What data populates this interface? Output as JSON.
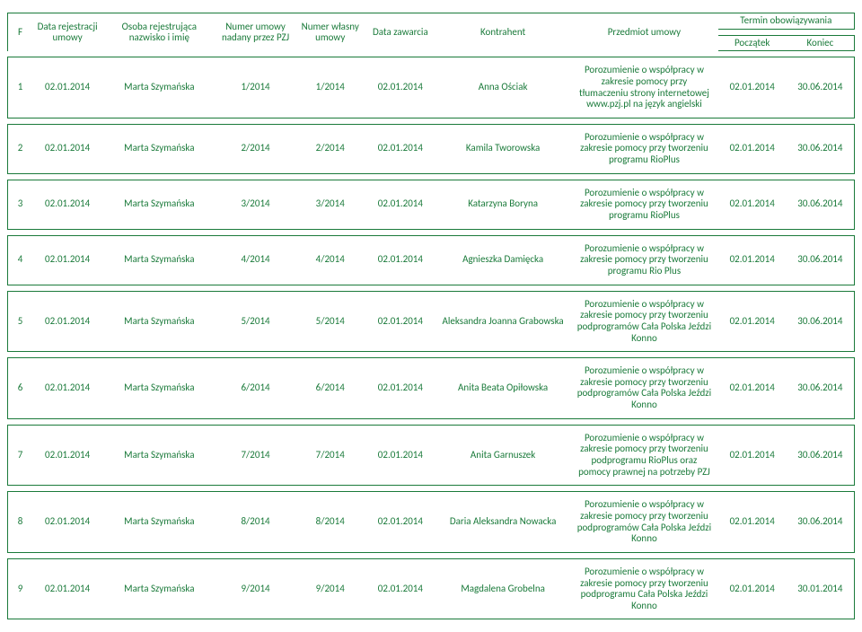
{
  "columns": {
    "f": "F",
    "reg_date": "Data rejestracji umowy",
    "person": "Osoba rejestrująca   nazwisko i imię",
    "pzj_no": "Numer umowy nadany przez PZJ",
    "own_no": "Numer własny umowy",
    "concl_date": "Data zawarcia",
    "counterparty": "Kontrahent",
    "subject": "Przedmiot umowy",
    "term": "Termin obowiązywania",
    "start": "Początek",
    "end": "Koniec"
  },
  "rows": [
    {
      "f": "1",
      "reg": "02.01.2014",
      "person": "Marta Szymańska",
      "pzj": "1/2014",
      "own": "1/2014",
      "dc": "02.01.2014",
      "kon": "Anna Ościak",
      "sub": "Porozumienie o współpracy w zakresie pomocy przy tłumaczeniu strony internetowej www.pzj.pl na język angielski",
      "d1": "02.01.2014",
      "d2": "30.06.2014"
    },
    {
      "f": "2",
      "reg": "02.01.2014",
      "person": "Marta Szymańska",
      "pzj": "2/2014",
      "own": "2/2014",
      "dc": "02.01.2014",
      "kon": "Kamila Tworowska",
      "sub": "Porozumienie o współpracy w zakresie pomocy przy tworzeniu programu RioPlus",
      "d1": "02.01.2014",
      "d2": "30.06.2014"
    },
    {
      "f": "3",
      "reg": "02.01.2014",
      "person": "Marta Szymańska",
      "pzj": "3/2014",
      "own": "3/2014",
      "dc": "02.01.2014",
      "kon": "Katarzyna Boryna",
      "sub": "Porozumienie o współpracy w zakresie pomocy przy tworzeniu programu RioPlus",
      "d1": "02.01.2014",
      "d2": "30.06.2014"
    },
    {
      "f": "4",
      "reg": "02.01.2014",
      "person": "Marta Szymańska",
      "pzj": "4/2014",
      "own": "4/2014",
      "dc": "02.01.2014",
      "kon": "Agnieszka Damięcka",
      "sub": "Porozumienie o współpracy w zakresie pomocy przy tworzeniu programu Rio Plus",
      "d1": "02.01.2014",
      "d2": "30.06.2014"
    },
    {
      "f": "5",
      "reg": "02.01.2014",
      "person": "Marta Szymańska",
      "pzj": "5/2014",
      "own": "5/2014",
      "dc": "02.01.2014",
      "kon": "Aleksandra Joanna Grabowska",
      "sub": "Porozumienie o współpracy w zakresie pomocy przy tworzeniu podprogramów Cała Polska Jeździ Konno",
      "d1": "02.01.2014",
      "d2": "30.06.2014"
    },
    {
      "f": "6",
      "reg": "02.01.2014",
      "person": "Marta Szymańska",
      "pzj": "6/2014",
      "own": "6/2014",
      "dc": "02.01.2014",
      "kon": "Anita Beata Opiłowska",
      "sub": "Porozumienie o współpracy w zakresie pomocy przy tworzeniu podprogramów Cała Polska Jeździ Konno",
      "d1": "02.01.2014",
      "d2": "30.06.2014"
    },
    {
      "f": "7",
      "reg": "02.01.2014",
      "person": "Marta Szymańska",
      "pzj": "7/2014",
      "own": "7/2014",
      "dc": "02.01.2014",
      "kon": "Anita Garnuszek",
      "sub": "Porozumienie o współpracy w zakresie pomocy przy tworzeniu podprogramu RioPlus oraz pomocy prawnej na potrzeby PZJ",
      "d1": "02.01.2014",
      "d2": "30.06.2014"
    },
    {
      "f": "8",
      "reg": "02.01.2014",
      "person": "Marta Szymańska",
      "pzj": "8/2014",
      "own": "8/2014",
      "dc": "02.01.2014",
      "kon": "Daria Aleksandra Nowacka",
      "sub": "Porozumienie o współpracy w zakresie pomocy przy tworzeniu podprogramów Cała Polska Jeździ Konno",
      "d1": "02.01.2014",
      "d2": "30.06.2014"
    },
    {
      "f": "9",
      "reg": "02.01.2014",
      "person": "Marta Szymańska",
      "pzj": "9/2014",
      "own": "9/2014",
      "dc": "02.01.2014",
      "kon": "Magdalena Grobelna",
      "sub": "Porozumienie o współpracy w zakresie pomocy przy tworzeniu podprogramu Cała Polska Jeździ Konno",
      "d1": "02.01.2014",
      "d2": "30.01.2014"
    }
  ]
}
